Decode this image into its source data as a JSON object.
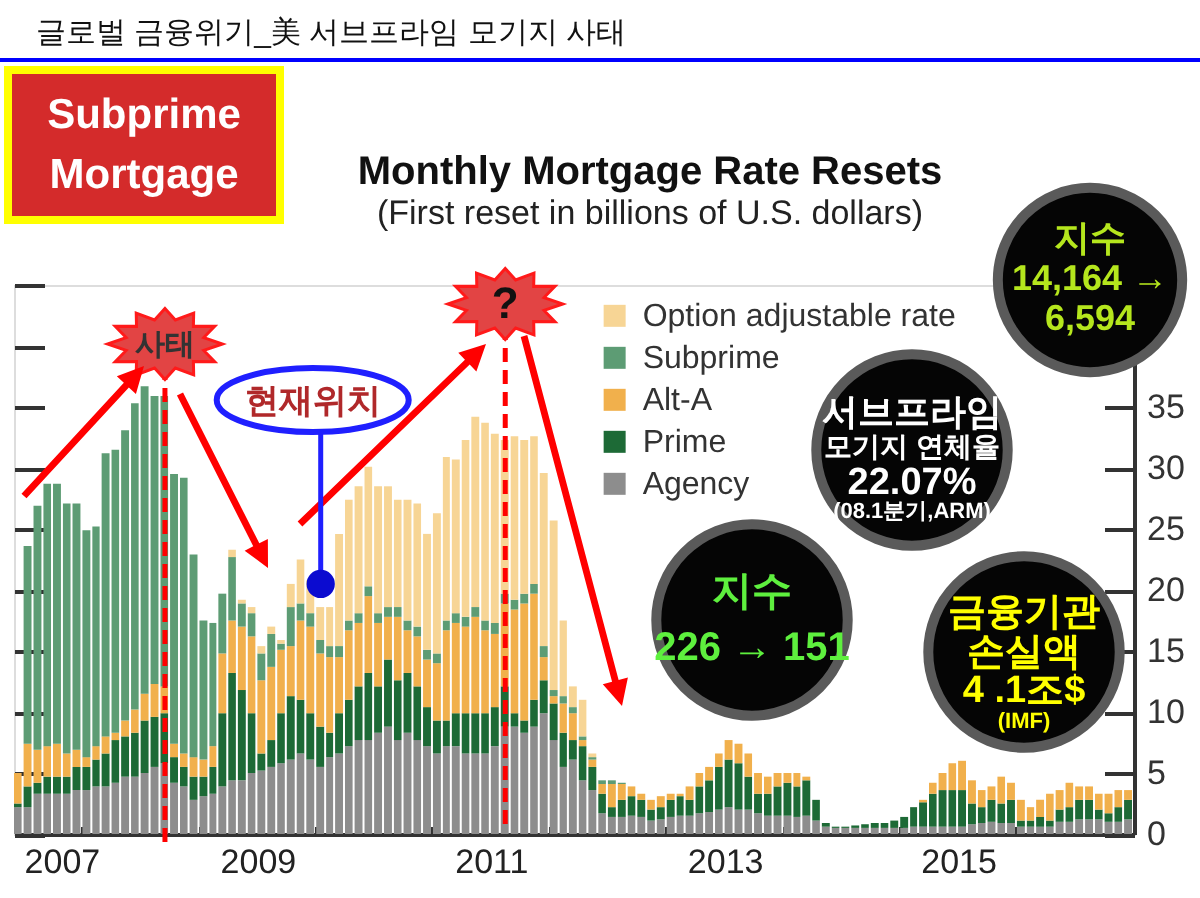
{
  "chart_data": {
    "type": "bar",
    "stacked": true,
    "title": "Monthly Mortgage Rate Resets",
    "subtitle": "(First reset in billions of U.S. dollars)",
    "annotations": [
      "글로벌 금융위기_美 서브프라임 모기지 사태",
      "Subprime\nMortgage",
      "지수\n14,164 →\n6,594",
      "서브프라임\n모기지 연체율\n22.07%\n(08.1분기,ARM)",
      "지수\n226 → 151",
      "금융기관\n손실액\n4 .1조$\n(IMF)",
      {
        "text": "현재위치",
        "x": "2010-01-15",
        "y": 20.5
      }
    ],
    "x": [
      "2007-06",
      "2007-07",
      "2007-08",
      "2007-09",
      "2007-10",
      "2007-11",
      "2007-12",
      "2008-01",
      "2008-02",
      "2008-03",
      "2008-04",
      "2008-05",
      "2008-06",
      "2008-07",
      "2008-08",
      "2008-09",
      "2008-10",
      "2008-11",
      "2008-12",
      "2009-01",
      "2009-02",
      "2009-03",
      "2009-04",
      "2009-05",
      "2009-06",
      "2009-07",
      "2009-08",
      "2009-09",
      "2009-10",
      "2009-11",
      "2009-12",
      "2010-01",
      "2010-02",
      "2010-03",
      "2010-04",
      "2010-05",
      "2010-06",
      "2010-07",
      "2010-08",
      "2010-09",
      "2010-10",
      "2010-11",
      "2010-12",
      "2011-01",
      "2011-02",
      "2011-03",
      "2011-04",
      "2011-05",
      "2011-06",
      "2011-07",
      "2011-08",
      "2011-09",
      "2011-10",
      "2011-11",
      "2011-12",
      "2012-01",
      "2012-02",
      "2012-03",
      "2012-04",
      "2012-05",
      "2012-06",
      "2012-07",
      "2012-08",
      "2012-09",
      "2012-10",
      "2012-11",
      "2012-12",
      "2013-01",
      "2013-02",
      "2013-03",
      "2013-04",
      "2013-05",
      "2013-06",
      "2013-07",
      "2013-08",
      "2013-09",
      "2013-10",
      "2013-11",
      "2013-12",
      "2014-01",
      "2014-02",
      "2014-03",
      "2014-04",
      "2014-05",
      "2014-06",
      "2014-07",
      "2014-08",
      "2014-09",
      "2014-10",
      "2014-11",
      "2014-12",
      "2015-01",
      "2015-02",
      "2015-03",
      "2015-04",
      "2015-05",
      "2015-06",
      "2015-07",
      "2015-08",
      "2015-09",
      "2015-10",
      "2015-11",
      "2015-12",
      "2016-01",
      "2016-02",
      "2016-03",
      "2016-04",
      "2016-05",
      "2016-06",
      "2016-07",
      "2016-08",
      "2016-09",
      "2016-10",
      "2016-11",
      "2016-12"
    ],
    "xlim": [
      "2007-06",
      "2017-01"
    ],
    "xticks": [
      {
        "value": "2007-07",
        "label": "2007"
      },
      {
        "value": "2008-01",
        "label": null
      },
      {
        "value": "2009-01",
        "label": null
      },
      {
        "value": "2009-07",
        "label": "2009"
      },
      {
        "value": "2010-01",
        "label": null
      },
      {
        "value": "2011-01",
        "label": null
      },
      {
        "value": "2011-07",
        "label": "2011"
      },
      {
        "value": "2012-01",
        "label": null
      },
      {
        "value": "2013-01",
        "label": null
      },
      {
        "value": "2013-07",
        "label": "2013"
      },
      {
        "value": "2014-01",
        "label": null
      },
      {
        "value": "2015-01",
        "label": null
      },
      {
        "value": "2015-07",
        "label": "2015"
      },
      {
        "value": "2016-01",
        "label": null
      },
      {
        "value": "2017-01",
        "label": null
      }
    ],
    "ylim": [
      0,
      45
    ],
    "yticks": [
      0,
      5,
      10,
      15,
      20,
      25,
      30,
      35,
      {
        "value": 40,
        "label": null
      },
      {
        "value": 45,
        "label": null
      }
    ],
    "legend": "top right",
    "ref_lines": [
      {
        "axis": "x",
        "value": "2008-09-15",
        "label": "사태",
        "color": "#ff0000",
        "line_style": "dashed"
      },
      {
        "axis": "x",
        "value": "2011-08-15",
        "label": "?",
        "color": "#ff0000",
        "line_style": "dashed"
      }
    ],
    "series": [
      {
        "name": "Agency",
        "color": "#8d8d8d",
        "values": [
          2.2,
          2.2,
          3.3,
          3.3,
          3.3,
          3.3,
          3.6,
          3.6,
          3.9,
          3.9,
          4.2,
          4.7,
          4.7,
          5.0,
          5.5,
          5.8,
          4.2,
          3.9,
          2.8,
          3.1,
          3.3,
          3.9,
          4.4,
          4.4,
          5.0,
          5.2,
          5.5,
          5.8,
          6.1,
          6.6,
          6.1,
          5.5,
          6.3,
          6.6,
          7.2,
          7.7,
          7.7,
          8.3,
          8.8,
          7.7,
          8.3,
          7.7,
          7.2,
          6.6,
          7.2,
          7.2,
          6.6,
          6.6,
          6.6,
          7.2,
          8.8,
          8.8,
          8.3,
          8.8,
          9.9,
          7.7,
          5.5,
          6.1,
          4.4,
          3.6,
          1.7,
          1.4,
          1.4,
          1.5,
          1.4,
          1.1,
          1.2,
          1.4,
          1.5,
          1.5,
          1.7,
          1.8,
          2.0,
          2.2,
          2.0,
          2.0,
          1.7,
          1.5,
          1.5,
          1.5,
          1.4,
          1.5,
          1.1,
          0.6,
          0.5,
          0.5,
          0.5,
          0.5,
          0.5,
          0.5,
          0.5,
          0.5,
          0.6,
          0.6,
          0.6,
          0.6,
          0.6,
          0.6,
          0.8,
          0.9,
          1.0,
          0.9,
          0.9,
          0.6,
          0.6,
          0.6,
          0.6,
          1.0,
          1.0,
          1.2,
          1.2,
          1.2,
          1.0,
          1.0,
          1.2
        ]
      },
      {
        "name": "Prime",
        "color": "#1d6a36",
        "values": [
          0.3,
          1.7,
          0.9,
          1.4,
          1.4,
          1.4,
          1.9,
          1.9,
          2.2,
          2.7,
          3.5,
          3.3,
          3.6,
          4.3,
          4.1,
          4.1,
          2.1,
          1.6,
          1.9,
          1.6,
          2.2,
          6.0,
          8.8,
          7.4,
          4.9,
          1.4,
          2.2,
          4.1,
          5.2,
          4.4,
          3.8,
          3.3,
          2.0,
          3.3,
          3.8,
          4.4,
          5.5,
          3.8,
          5.5,
          4.9,
          4.9,
          4.4,
          3.2,
          2.7,
          2.1,
          2.7,
          3.3,
          3.3,
          3.3,
          3.2,
          3.3,
          1.1,
          1.0,
          2.2,
          2.7,
          3.0,
          2.8,
          1.6,
          2.8,
          1.9,
          1.6,
          0.8,
          1.4,
          1.6,
          1.4,
          0.9,
          1.0,
          1.4,
          1.6,
          1.3,
          2.2,
          2.6,
          3.5,
          3.9,
          3.8,
          2.7,
          1.6,
          1.8,
          2.4,
          2.7,
          2.5,
          2.9,
          1.7,
          0.3,
          0.1,
          0.1,
          0.2,
          0.3,
          0.4,
          0.4,
          0.6,
          0.9,
          1.6,
          2.0,
          2.7,
          3.0,
          3.0,
          3.0,
          1.7,
          1.3,
          1.8,
          1.6,
          1.9,
          0.5,
          0.5,
          0.8,
          0.5,
          1.0,
          1.2,
          1.6,
          1.6,
          0.8,
          0.7,
          1.2,
          1.6
        ]
      },
      {
        "name": "Alt-A",
        "color": "#f1b04c",
        "values": [
          2.5,
          3.5,
          2.7,
          2.5,
          2.7,
          1.9,
          1.4,
          0.8,
          1.1,
          1.4,
          0.6,
          1.3,
          1.9,
          2.2,
          2.7,
          2.2,
          1.1,
          1.1,
          1.6,
          1.4,
          1.7,
          4.9,
          4.3,
          5.2,
          6.3,
          6.0,
          6.0,
          5.2,
          4.1,
          6.5,
          7.1,
          6.0,
          6.2,
          4.6,
          5.7,
          5.2,
          6.3,
          5.2,
          3.5,
          5.2,
          3.5,
          4.1,
          3.9,
          4.7,
          7.4,
          7.4,
          7.1,
          7.9,
          6.8,
          6.0,
          6.8,
          8.5,
          9.6,
          8.7,
          1.9,
          0.6,
          2.4,
          2.2,
          0.5,
          0.6,
          0.8,
          1.9,
          1.3,
          0.8,
          0.5,
          0.8,
          0.9,
          0.5,
          0.2,
          1.1,
          1.1,
          1.1,
          1.1,
          1.6,
          1.6,
          1.9,
          1.7,
          1.4,
          1.1,
          0.8,
          1.1,
          0.3,
          null,
          null,
          null,
          null,
          null,
          null,
          null,
          null,
          null,
          null,
          null,
          0.2,
          0.9,
          1.4,
          2.2,
          2.4,
          1.9,
          1.4,
          1.1,
          2.2,
          1.4,
          1.7,
          1.1,
          1.4,
          2.2,
          1.6,
          2.0,
          1.1,
          1.1,
          1.3,
          1.6,
          1.4,
          0.8
        ]
      },
      {
        "name": "Subprime",
        "color": "#5d9c74",
        "values": [
          null,
          16.2,
          20.0,
          21.5,
          21.3,
          20.5,
          20.2,
          18.6,
          18.0,
          23.2,
          23.2,
          23.8,
          25.1,
          25.2,
          23.6,
          23.8,
          22.1,
          22.6,
          16.6,
          11.4,
          10.1,
          4.9,
          5.2,
          1.9,
          1.9,
          2.2,
          2.7,
          0.5,
          3.2,
          1.4,
          1.1,
          1.1,
          0.9,
          0.9,
          0.8,
          0.8,
          0.8,
          0.8,
          0.8,
          0.8,
          0.8,
          0.8,
          0.8,
          0.8,
          0.8,
          0.8,
          0.8,
          0.8,
          0.8,
          0.9,
          0.8,
          0.8,
          0.8,
          0.8,
          0.9,
          0.5,
          0.6,
          0.5,
          0.3,
          0.2,
          0.3,
          0.3,
          0.1,
          null,
          null,
          null,
          null,
          null,
          null,
          null,
          null,
          null,
          null,
          null,
          null,
          null,
          null,
          null,
          null,
          null,
          null,
          null,
          null,
          null,
          null,
          null,
          null,
          null,
          null,
          null,
          null,
          null,
          null,
          null,
          null,
          null,
          null,
          null,
          null,
          null,
          null,
          null,
          null,
          null,
          null,
          null,
          null,
          null,
          null,
          null,
          null,
          null,
          null,
          null,
          null
        ]
      },
      {
        "name": "Option adjustable rate",
        "color": "#f7d595",
        "values": [
          null,
          null,
          null,
          null,
          null,
          null,
          null,
          null,
          null,
          null,
          null,
          null,
          null,
          null,
          null,
          null,
          null,
          null,
          null,
          null,
          null,
          null,
          0.6,
          0.3,
          0.5,
          0.6,
          0.6,
          0.3,
          1.9,
          3.6,
          2.7,
          2.7,
          3.2,
          9.2,
          9.9,
          10.4,
          9.8,
          10.4,
          9.9,
          8.8,
          9.9,
          10.1,
          9.5,
          11.5,
          13.4,
          12.6,
          14.5,
          15.6,
          16.2,
          15.5,
          12.6,
          13.4,
          12.6,
          12.1,
          14.2,
          13.9,
          6.2,
          1.7,
          3.0,
          0.3,
          null,
          null,
          null,
          null,
          null,
          null,
          null,
          null,
          null,
          null,
          null,
          null,
          null,
          null,
          null,
          null,
          null,
          null,
          null,
          null,
          null,
          null,
          null,
          null,
          null,
          null,
          null,
          null,
          null,
          null,
          null,
          null,
          null,
          null,
          null,
          null,
          null,
          null,
          null,
          null,
          null,
          null,
          null,
          null,
          null,
          null,
          null,
          null,
          null,
          null,
          null,
          null,
          null,
          null,
          null
        ]
      }
    ]
  }
}
